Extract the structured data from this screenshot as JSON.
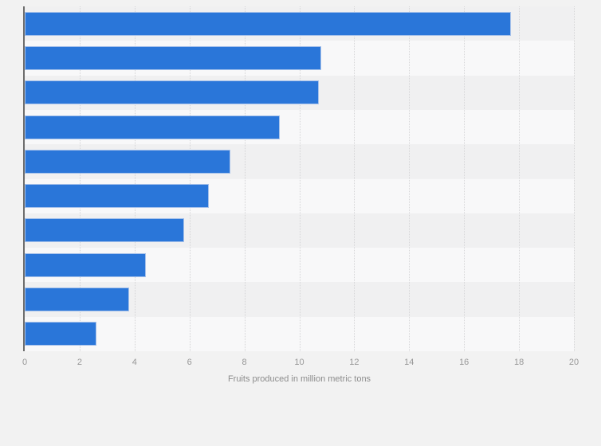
{
  "page": {
    "background_color": "#f2f2f2"
  },
  "chart_data": {
    "type": "bar",
    "orientation": "horizontal",
    "title": "",
    "xlabel": "Fruits produced in million metric tons",
    "ylabel": "",
    "categories": [
      "",
      "",
      "",
      "",
      "",
      "",
      "",
      "",
      "",
      ""
    ],
    "values": [
      17.7,
      10.8,
      10.7,
      9.3,
      7.5,
      6.7,
      5.8,
      4.4,
      3.8,
      2.6
    ],
    "xlim": [
      0,
      20
    ],
    "xticks": [
      0,
      2,
      4,
      6,
      8,
      10,
      12,
      14,
      16,
      18,
      20
    ],
    "grid": "vertical dotted gridlines at every labeled tick",
    "legend": "none",
    "row_bands": "alternating zebra stripes, first row darker",
    "colors": {
      "bar_fill": "#2a76d9",
      "bar_border": "#a4c0ea",
      "band_dark": "#f0f0f1",
      "band_light": "#f8f8f9",
      "axis_line": "#6d6d6d",
      "gridline": "#d4d4d6",
      "tick_label": "#979797",
      "axis_label": "#8c8c8c"
    }
  }
}
